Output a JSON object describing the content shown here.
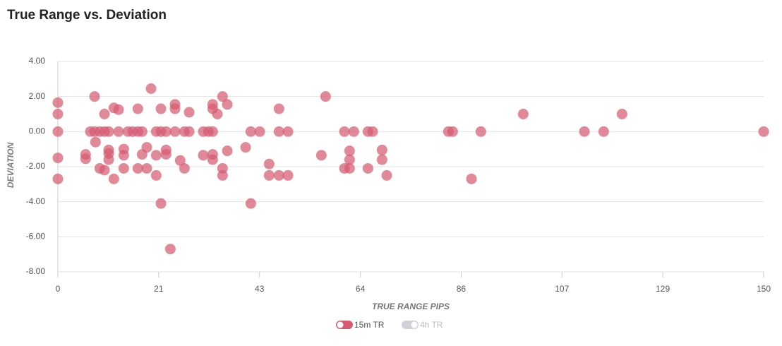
{
  "chart_data": {
    "type": "scatter",
    "title": "True Range vs. Deviation",
    "x_label": "TRUE RANGE PIPS",
    "y_label": "DEVIATION",
    "xlim": [
      0,
      150
    ],
    "ylim": [
      -8,
      4
    ],
    "xticks": [
      {
        "value": 0,
        "label": "0"
      },
      {
        "value": 21.43,
        "label": "21"
      },
      {
        "value": 42.86,
        "label": "43"
      },
      {
        "value": 64.29,
        "label": "64"
      },
      {
        "value": 85.71,
        "label": "86"
      },
      {
        "value": 107.14,
        "label": "107"
      },
      {
        "value": 128.57,
        "label": "129"
      },
      {
        "value": 150,
        "label": "150"
      }
    ],
    "yticks": [
      {
        "value": 4,
        "label": "4.00"
      },
      {
        "value": 2,
        "label": "2.00"
      },
      {
        "value": 0,
        "label": "0.00"
      },
      {
        "value": -2,
        "label": "-2.00"
      },
      {
        "value": -4,
        "label": "-4.00"
      },
      {
        "value": -6,
        "label": "-6.00"
      },
      {
        "value": -8,
        "label": "-8.00"
      }
    ],
    "grid": true,
    "series": [
      {
        "name": "15m TR",
        "color": "#d65a72",
        "hidden": false,
        "x": [
          0,
          0,
          0,
          0,
          0,
          5.9,
          5.9,
          6.9,
          7.8,
          7.8,
          8,
          8.9,
          8.9,
          9.9,
          9.9,
          9.9,
          10.8,
          10.8,
          10.8,
          10.8,
          11.9,
          11.9,
          12.9,
          12.9,
          14,
          14,
          14,
          14.9,
          15.9,
          17,
          17,
          17,
          17.9,
          17.9,
          18.9,
          18.9,
          19.8,
          20.9,
          20.9,
          20.9,
          21.9,
          21.9,
          21.9,
          23,
          23,
          23,
          23.9,
          24.9,
          24.9,
          24.9,
          26,
          26.9,
          26.9,
          27.9,
          27.9,
          30.9,
          30.9,
          32,
          32.9,
          32.9,
          32.9,
          32.9,
          32.9,
          33.9,
          35,
          35,
          35,
          36,
          36,
          39.9,
          41,
          41,
          42.9,
          44.9,
          44.9,
          47,
          47,
          47,
          48.9,
          48.9,
          56,
          56.9,
          60.9,
          60.9,
          62,
          62,
          62,
          62.9,
          65.9,
          65.9,
          66.9,
          68.9,
          68.9,
          69.9,
          83,
          83.9,
          87.9,
          89.9,
          98.9,
          111.9,
          116,
          119.9,
          150
        ],
        "values": [
          1.65,
          1,
          0,
          -1.5,
          -2.7,
          -1.3,
          -1.55,
          0,
          2,
          0,
          -0.6,
          0,
          -2.1,
          1,
          -2.2,
          0,
          0,
          -1.05,
          -1.25,
          -1.6,
          1.35,
          -2.7,
          1.25,
          0,
          -1,
          -1.35,
          -2.1,
          0,
          0,
          1.3,
          0,
          -2.1,
          0,
          -1.3,
          -0.9,
          -2.1,
          2.45,
          0,
          -1.35,
          -2.5,
          1.3,
          0,
          -4.1,
          0,
          -1.05,
          -1.3,
          -6.7,
          1.55,
          1.3,
          0,
          -1.65,
          0,
          -2.1,
          1.1,
          0,
          0,
          -1.35,
          0,
          1.55,
          1.3,
          0,
          -1.3,
          -1.6,
          1,
          2,
          -2.1,
          -2.5,
          1.55,
          -1.1,
          -0.9,
          0,
          -4.1,
          0,
          -1.85,
          -2.5,
          1.3,
          0,
          -2.5,
          0,
          -2.5,
          -1.35,
          2,
          0,
          -2.1,
          -1.1,
          -1.6,
          -2.1,
          0,
          0,
          -2.1,
          0,
          -1.05,
          -1.6,
          -2.5,
          0,
          0,
          -2.7,
          0,
          1,
          0,
          0,
          1,
          0
        ]
      },
      {
        "name": "4h TR",
        "color": "#cfd3d8",
        "hidden": true,
        "x": [],
        "values": []
      }
    ]
  }
}
